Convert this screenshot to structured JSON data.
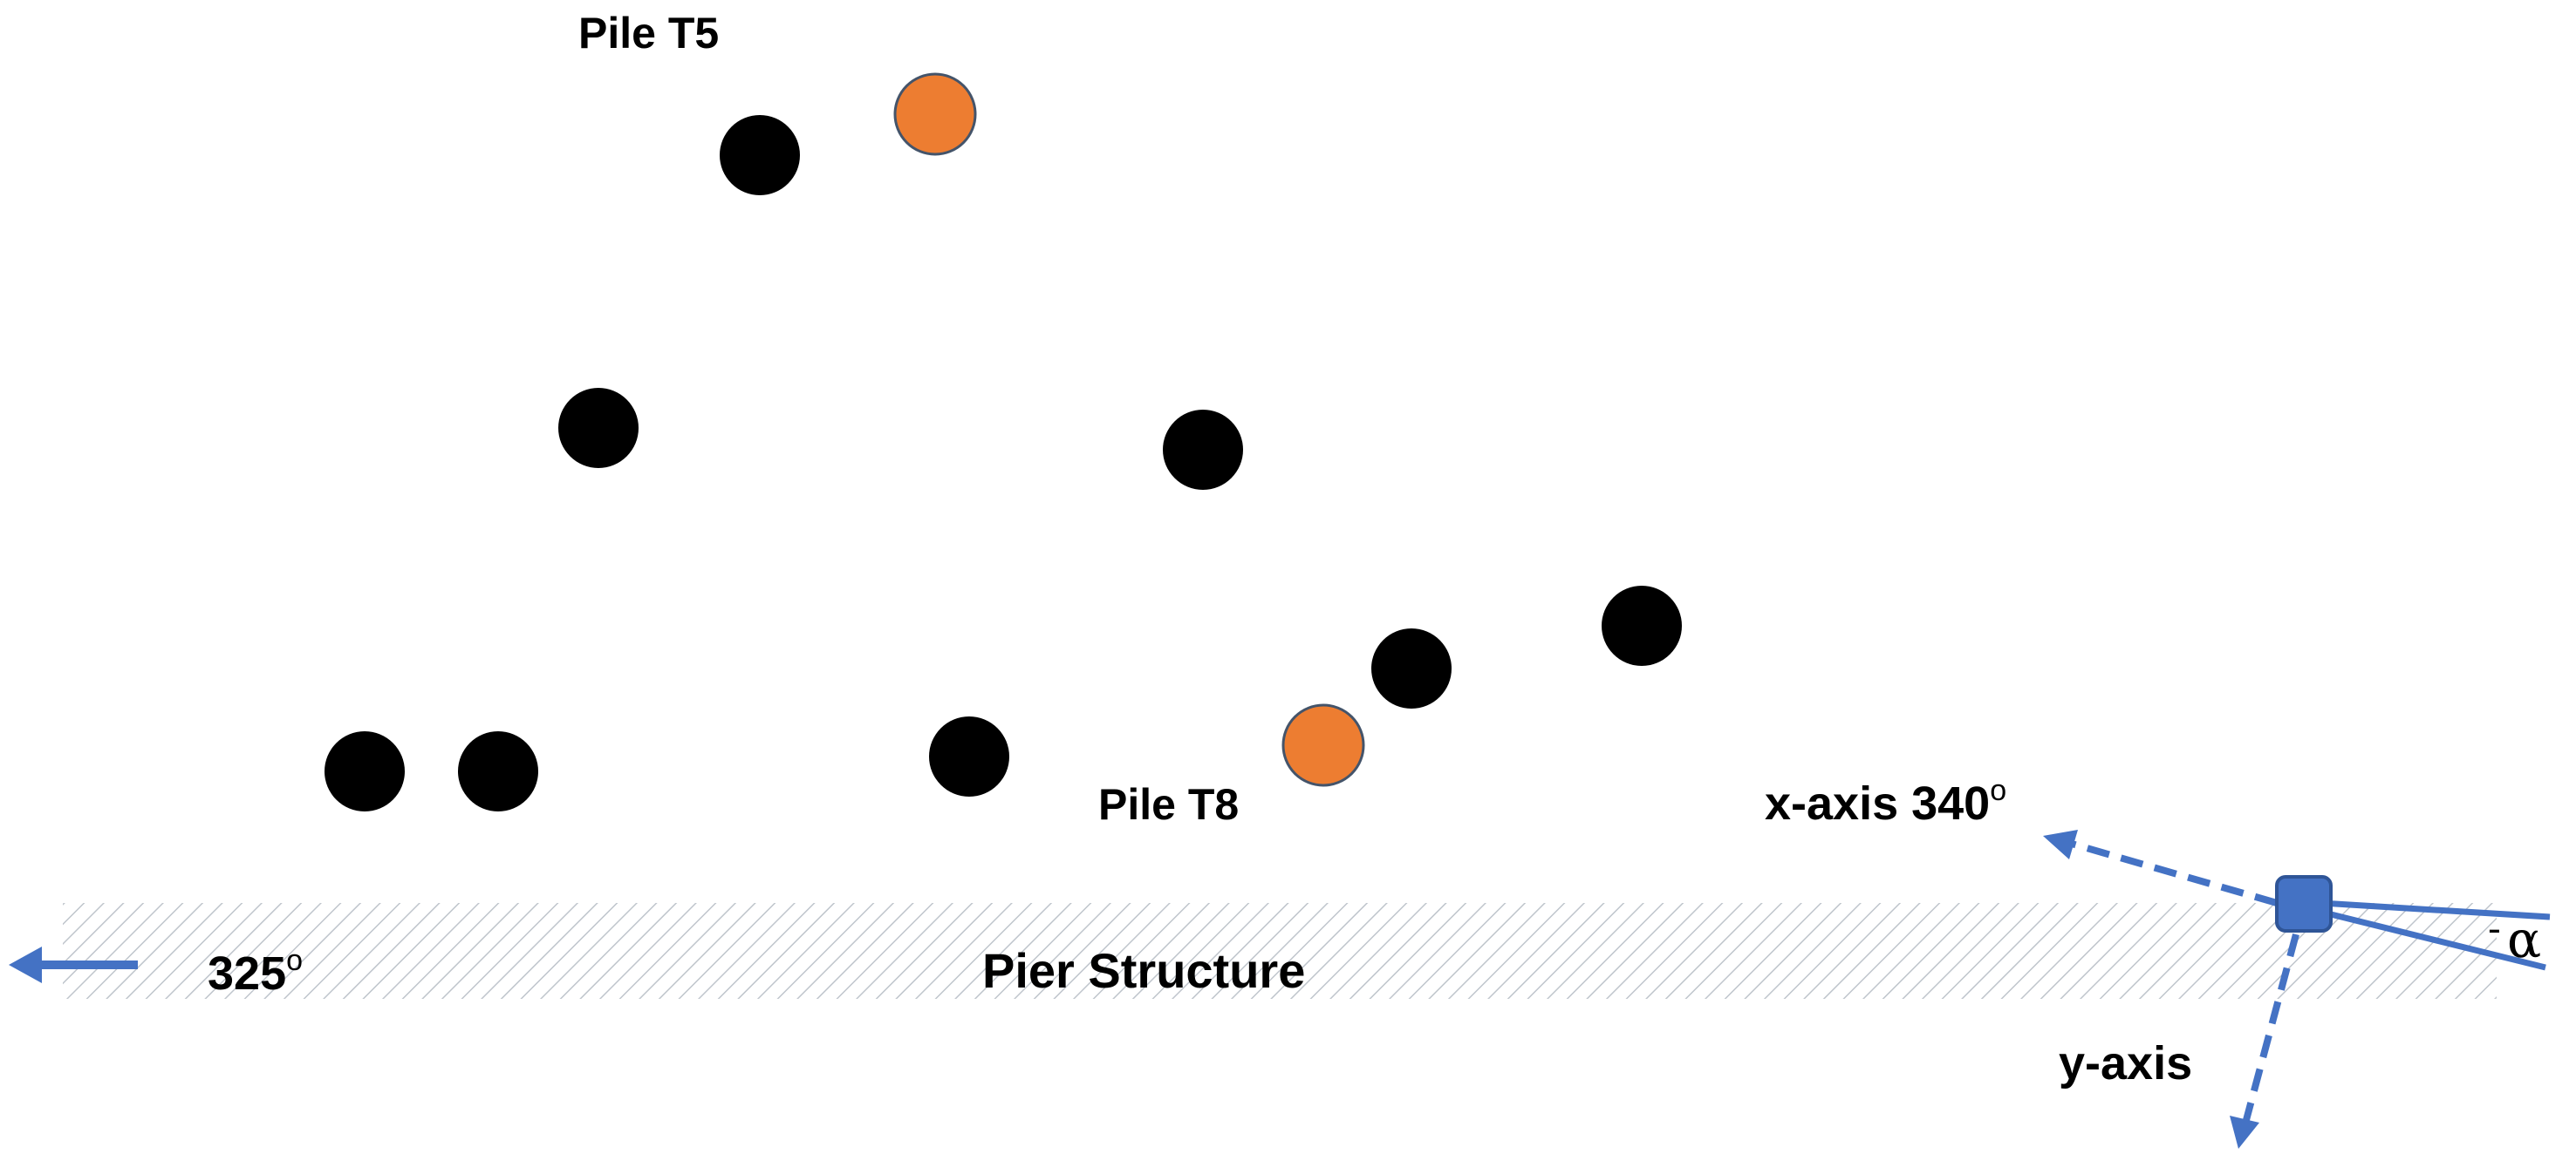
{
  "labels": {
    "pile_t5": "Pile T5",
    "pile_t8": "Pile T8",
    "pier_structure": "Pier Structure",
    "pier_direction": "325",
    "pier_direction_sup": "o",
    "x_axis": "x-axis 340",
    "x_axis_sup": "o",
    "y_axis": "y-axis",
    "angle_minus": "-",
    "angle_symbol": "α"
  },
  "colors": {
    "pile": "#000000",
    "highlight_pile": "#ED7D31",
    "highlight_pile_outline": "#44546A",
    "axis_blue": "#4472C4",
    "sensor": "#4472C4",
    "sensor_outline": "#2F5597",
    "hatch": "#bfc5cc"
  },
  "piles": [
    {
      "id": "pile-1",
      "highlighted": false
    },
    {
      "id": "pile-T5",
      "highlighted": true
    },
    {
      "id": "pile-3",
      "highlighted": false
    },
    {
      "id": "pile-4",
      "highlighted": false
    },
    {
      "id": "pile-5",
      "highlighted": false
    },
    {
      "id": "pile-6",
      "highlighted": false
    },
    {
      "id": "pile-7",
      "highlighted": false
    },
    {
      "id": "pile-8",
      "highlighted": false
    },
    {
      "id": "pile-9",
      "highlighted": false
    },
    {
      "id": "pile-T8",
      "highlighted": true
    }
  ],
  "icons": {
    "pier_arrow": "left-arrow-icon",
    "sensor": "sensor-square-icon"
  }
}
